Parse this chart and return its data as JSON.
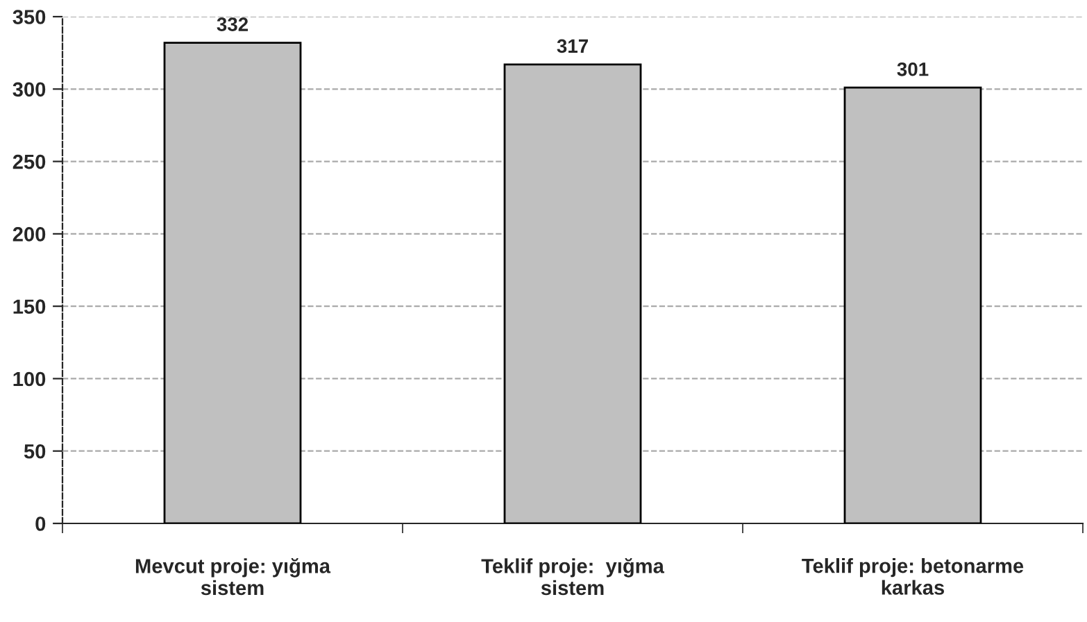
{
  "chart_data": {
    "type": "bar",
    "categories": [
      "Mevcut proje: yığma\nsistem",
      "Teklif proje:  yığma\nsistem",
      "Teklif proje: betonarme\nkarkas"
    ],
    "values": [
      332,
      317,
      301
    ],
    "color": "#c0c0c0",
    "ylim": [
      0,
      350
    ],
    "yticks": [
      0,
      50,
      100,
      150,
      200,
      250,
      300,
      350
    ],
    "grid": "y",
    "data_labels": true
  }
}
